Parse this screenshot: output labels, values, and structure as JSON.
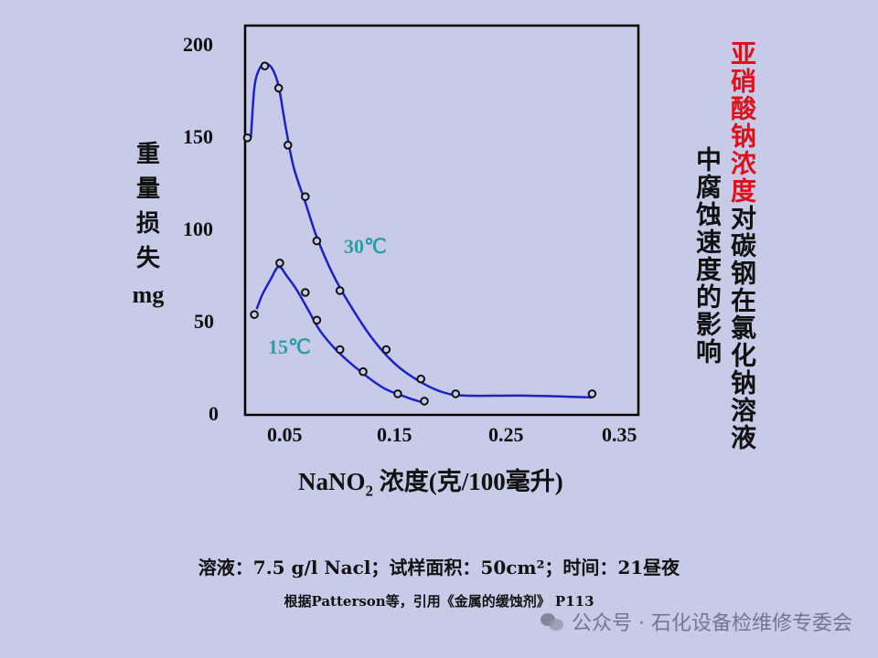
{
  "chart_data": {
    "type": "line",
    "ylabel_chars": [
      "重",
      "量",
      "损",
      "失"
    ],
    "ylabel_unit": "mg",
    "xlabel_prefix": "NaNO",
    "xlabel_sub": "2",
    "xlabel_suffix": " 浓度(克/100毫升)",
    "xlim": [
      0.01,
      0.35
    ],
    "ylim": [
      0,
      200
    ],
    "xticks": [
      0.05,
      0.15,
      0.25,
      0.35
    ],
    "xtick_labels": [
      "0.05",
      "0.15",
      "0.25",
      "0.35"
    ],
    "yticks": [
      0,
      50,
      100,
      150,
      200
    ],
    "ytick_labels": [
      "0",
      "50",
      "100",
      "150",
      "200"
    ],
    "grid": false,
    "series": [
      {
        "name": "30℃",
        "color": "#1a22c8",
        "points": [
          [
            0.012,
            149
          ],
          [
            0.027,
            188
          ],
          [
            0.039,
            176
          ],
          [
            0.047,
            145
          ],
          [
            0.062,
            117
          ],
          [
            0.072,
            93
          ],
          [
            0.092,
            66
          ],
          [
            0.132,
            34
          ],
          [
            0.162,
            18
          ],
          [
            0.192,
            10
          ],
          [
            0.31,
            10
          ]
        ],
        "curve": [
          [
            0.015,
            149
          ],
          [
            0.018,
            176
          ],
          [
            0.022,
            186
          ],
          [
            0.027,
            189
          ],
          [
            0.033,
            187
          ],
          [
            0.039,
            177
          ],
          [
            0.045,
            155
          ],
          [
            0.052,
            133
          ],
          [
            0.062,
            114
          ],
          [
            0.072,
            95
          ],
          [
            0.085,
            76
          ],
          [
            0.1,
            59
          ],
          [
            0.12,
            40
          ],
          [
            0.14,
            26
          ],
          [
            0.16,
            17
          ],
          [
            0.18,
            11
          ],
          [
            0.2,
            9
          ],
          [
            0.25,
            9
          ],
          [
            0.31,
            8
          ]
        ]
      },
      {
        "name": "15℃",
        "color": "#1a22c8",
        "points": [
          [
            0.018,
            53
          ],
          [
            0.04,
            81
          ],
          [
            0.062,
            65
          ],
          [
            0.072,
            50
          ],
          [
            0.092,
            34
          ],
          [
            0.112,
            22
          ],
          [
            0.142,
            10
          ],
          [
            0.165,
            6
          ]
        ],
        "curve": [
          [
            0.02,
            56
          ],
          [
            0.025,
            64
          ],
          [
            0.032,
            72
          ],
          [
            0.039,
            79
          ],
          [
            0.046,
            74
          ],
          [
            0.055,
            66
          ],
          [
            0.065,
            55
          ],
          [
            0.075,
            44
          ],
          [
            0.09,
            33
          ],
          [
            0.11,
            22
          ],
          [
            0.13,
            13
          ],
          [
            0.15,
            8
          ],
          [
            0.165,
            5
          ]
        ]
      }
    ],
    "label_30": "30℃",
    "label_15": "15℃"
  },
  "title_red": "亚硝酸钠浓度",
  "title_black_col1": "对碳钢在氯化钠溶液",
  "title_black_col2": "中腐蚀速度的影响",
  "note_conditions": "溶液：7.5 g/l Nacl；试样面积：50cm²；时间：21昼夜",
  "note_source": "根据Patterson等，引用《金属的缓蚀剂》 P113",
  "watermark_text": "公众号 · 石化设备检维修专委会"
}
